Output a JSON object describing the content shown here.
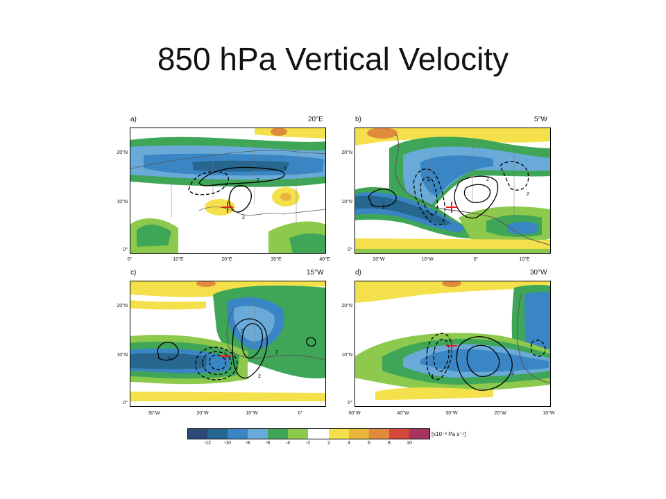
{
  "title": "850 hPa Vertical Velocity",
  "colors": {
    "dark_blue": "#2c4a78",
    "teal": "#27678f",
    "blue": "#3a86c4",
    "light_blue": "#6aaad8",
    "green": "#3fa557",
    "light_green": "#8cc94d",
    "white": "#ffffff",
    "yellow": "#f3e04a",
    "orange": "#e8b43a",
    "orange_dark": "#e08a3c",
    "red": "#d4473a",
    "maroon": "#a83260",
    "contour": "#000000",
    "marker": "#e0201a"
  },
  "panels": [
    {
      "id": "a",
      "label": "a)",
      "longitude": "20°E",
      "y_ticks": [
        "20°N",
        "10°N",
        "0°"
      ],
      "x_ticks": [
        "0°",
        "10°E",
        "20°E",
        "30°E",
        "40°E"
      ],
      "contour_labels": [
        "2",
        "2",
        "2"
      ]
    },
    {
      "id": "b",
      "label": "b)",
      "longitude": "5°W",
      "y_ticks": [
        "20°N",
        "10°N",
        "0°"
      ],
      "x_ticks": [
        "20°W",
        "10°W",
        "0°",
        "10°E"
      ],
      "contour_labels": [
        "2",
        "2",
        "4",
        "2"
      ]
    },
    {
      "id": "c",
      "label": "c)",
      "longitude": "15°W",
      "y_ticks": [
        "20°N",
        "10°N",
        "0°"
      ],
      "x_ticks": [
        "30°W",
        "20°W",
        "10°W",
        "0°"
      ],
      "contour_labels": [
        "2",
        "2",
        "2",
        "2"
      ]
    },
    {
      "id": "d",
      "label": "d)",
      "longitude": "30°W",
      "y_ticks": [
        "20°N",
        "10°N",
        "0°"
      ],
      "x_ticks": [
        "50°W",
        "40°W",
        "30°W",
        "20°W",
        "10°W"
      ],
      "contour_labels": [
        "4",
        "2"
      ]
    }
  ],
  "colorbar": {
    "ticks": [
      "-12",
      "-10",
      "-8",
      "-6",
      "-4",
      "-2",
      "2",
      "4",
      "6",
      "8",
      "10"
    ],
    "units": "[x10⁻² Pa s⁻¹]"
  }
}
